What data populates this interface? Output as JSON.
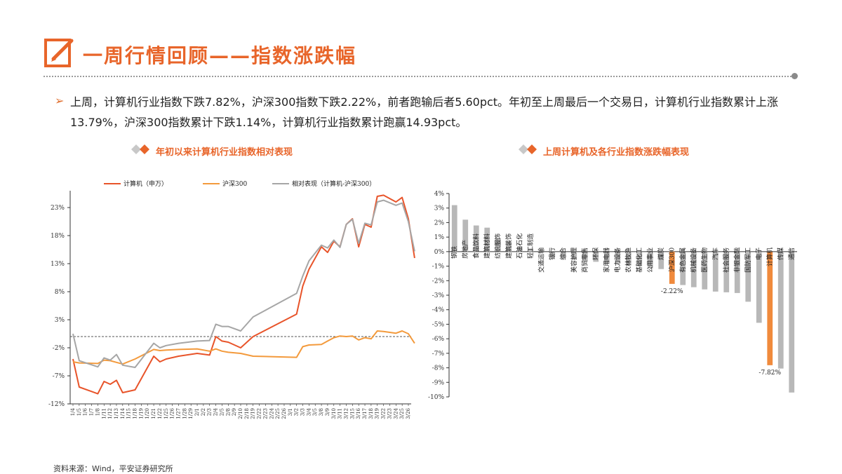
{
  "header": {
    "title": "一周行情回顾——指数涨跌幅"
  },
  "summary": {
    "bullet": "➢",
    "text": "上周，计算机行业指数下跌7.82%，沪深300指数下跌2.22%，前者跑输后者5.60pct。年初至上周最后一个交易日，计算机行业指数累计上涨13.79%，沪深300指数累计下跌1.14%，计算机行业指数累计跑赢14.93pct。"
  },
  "colors": {
    "accent": "#e8652a",
    "computer": "#e8542a",
    "hs300": "#f39a3c",
    "relative": "#a6a6a6",
    "bar_gray": "#b8b8b8",
    "bar_highlight": "#f08a3c"
  },
  "chart_data": [
    {
      "type": "line",
      "title": "年初以来计算机行业指数相对表现",
      "ylim": [
        -12,
        26
      ],
      "yticks": [
        "-12%",
        "-7%",
        "-2%",
        "3%",
        "8%",
        "13%",
        "18%",
        "23%"
      ],
      "ytick_values": [
        -12,
        -7,
        -2,
        3,
        8,
        13,
        18,
        23
      ],
      "xticks": [
        "1/4",
        "1/5",
        "1/6",
        "1/7",
        "1/8",
        "1/11",
        "1/12",
        "1/13",
        "1/14",
        "1/15",
        "1/18",
        "1/19",
        "1/20",
        "1/21",
        "1/22",
        "1/25",
        "1/26",
        "1/27",
        "1/28",
        "1/29",
        "2/1",
        "2/2",
        "2/3",
        "2/4",
        "2/5",
        "2/8",
        "2/9",
        "2/10",
        "2/18",
        "2/19",
        "2/22",
        "2/23",
        "2/24",
        "2/25",
        "2/26",
        "3/1",
        "3/2",
        "3/3",
        "3/4",
        "3/5",
        "3/8",
        "3/9",
        "3/10",
        "3/11",
        "3/12",
        "3/15",
        "3/16",
        "3/17",
        "3/18",
        "3/19",
        "3/22",
        "3/23",
        "3/24",
        "3/25",
        "3/26"
      ],
      "series": [
        {
          "name": "计算机（申万）",
          "color_key": "computer",
          "x": [
            0,
            1,
            4,
            5,
            6,
            7,
            8,
            10,
            13,
            14,
            15,
            17,
            20,
            22,
            23,
            24,
            25,
            27,
            29,
            36,
            37,
            38,
            40,
            41,
            42,
            43,
            44,
            45,
            46,
            47,
            48,
            49,
            50,
            52,
            53,
            54,
            55
          ],
          "values": [
            -4,
            -9,
            -10.2,
            -8,
            -8.5,
            -7.8,
            -10,
            -9.5,
            -3.5,
            -4.5,
            -4,
            -3.5,
            -3,
            -3.3,
            0,
            -0.8,
            -1,
            -2,
            0,
            4,
            9,
            12,
            16,
            15,
            17,
            16,
            20,
            21,
            16,
            20,
            19.5,
            25,
            25.2,
            24,
            24.8,
            21,
            14
          ]
        },
        {
          "name": "沪深300",
          "color_key": "hs300",
          "x": [
            0,
            1,
            4,
            5,
            6,
            7,
            8,
            10,
            13,
            14,
            15,
            17,
            20,
            22,
            23,
            24,
            25,
            27,
            29,
            36,
            37,
            38,
            40,
            41,
            42,
            43,
            44,
            45,
            46,
            47,
            48,
            49,
            50,
            52,
            53,
            54,
            55
          ],
          "values": [
            -4.5,
            -4.7,
            -4.8,
            -4.2,
            -4.3,
            -4.6,
            -4.9,
            -4,
            -2.3,
            -2.5,
            -2.4,
            -2.3,
            -2.2,
            -2.6,
            -2.2,
            -2.6,
            -2.8,
            -3,
            -3.5,
            -3.7,
            -1.8,
            -1.5,
            -1.4,
            -0.8,
            -0.2,
            0.1,
            0,
            0.1,
            -0.6,
            -0.2,
            -0.4,
            1,
            0.9,
            0.6,
            1.0,
            0.5,
            -1.2
          ]
        },
        {
          "name": "相对表现（计算机-沪深300）",
          "color_key": "relative",
          "x": [
            0,
            1,
            4,
            5,
            6,
            7,
            8,
            10,
            13,
            14,
            15,
            17,
            20,
            22,
            23,
            24,
            25,
            27,
            29,
            36,
            37,
            38,
            40,
            41,
            42,
            43,
            44,
            45,
            46,
            47,
            48,
            49,
            50,
            52,
            53,
            54,
            55
          ],
          "values": [
            0.5,
            -4.3,
            -5.4,
            -3.8,
            -4.2,
            -3.2,
            -5.1,
            -5.5,
            -1.2,
            -2,
            -1.6,
            -1.2,
            -0.8,
            -0.7,
            2.2,
            1.8,
            1.8,
            1,
            3.5,
            7.7,
            10.8,
            13.5,
            16.3,
            15.8,
            17.2,
            15.9,
            20,
            20.9,
            16.6,
            20.2,
            19.9,
            24,
            24.3,
            23.4,
            23.8,
            20.5,
            15.2
          ]
        }
      ]
    },
    {
      "type": "bar",
      "title": "上周计算机及各行业指数涨跌幅表现",
      "ylim": [
        -10,
        4
      ],
      "yticks": [
        "4%",
        "3%",
        "2%",
        "1%",
        "0%",
        "-1%",
        "-2%",
        "-3%",
        "-4%",
        "-5%",
        "-6%",
        "-7%",
        "-8%",
        "-9%",
        "-10%"
      ],
      "ytick_values": [
        4,
        3,
        2,
        1,
        0,
        -1,
        -2,
        -3,
        -4,
        -5,
        -6,
        -7,
        -8,
        -9,
        -10
      ],
      "categories": [
        "钢铁",
        "房地产",
        "食品饮料",
        "建筑材料",
        "纺织服饰",
        "建筑装饰",
        "石油石化",
        "轻工制造",
        "交通运输",
        "银行",
        "综合",
        "美容护理",
        "商贸零售",
        "环保",
        "家用电器",
        "电力设备",
        "农林牧渔",
        "基础化工",
        "公用事业",
        "煤炭",
        "沪深300",
        "有色金属",
        "机械设备",
        "医药生物",
        "汽车",
        "社会服务",
        "非银金融",
        "国防军工",
        "电子",
        "计算机",
        "传媒",
        "通信"
      ],
      "values": [
        3.2,
        2.2,
        1.8,
        1.65,
        0.9,
        0.7,
        0.3,
        0.2,
        -0.05,
        -0.35,
        -0.45,
        -0.55,
        -0.65,
        -0.7,
        -0.85,
        -0.85,
        -0.95,
        -1.0,
        -1.15,
        -1.2,
        -2.22,
        -2.3,
        -2.45,
        -2.6,
        -2.75,
        -2.8,
        -2.85,
        -3.45,
        -4.9,
        -7.82,
        -8.05,
        -9.7
      ],
      "highlight": [
        "沪深300",
        "计算机"
      ],
      "data_labels": {
        "沪深300": "-2.22%",
        "计算机": "-7.82%"
      }
    }
  ],
  "source": "资料来源：Wind，平安证券研究所"
}
